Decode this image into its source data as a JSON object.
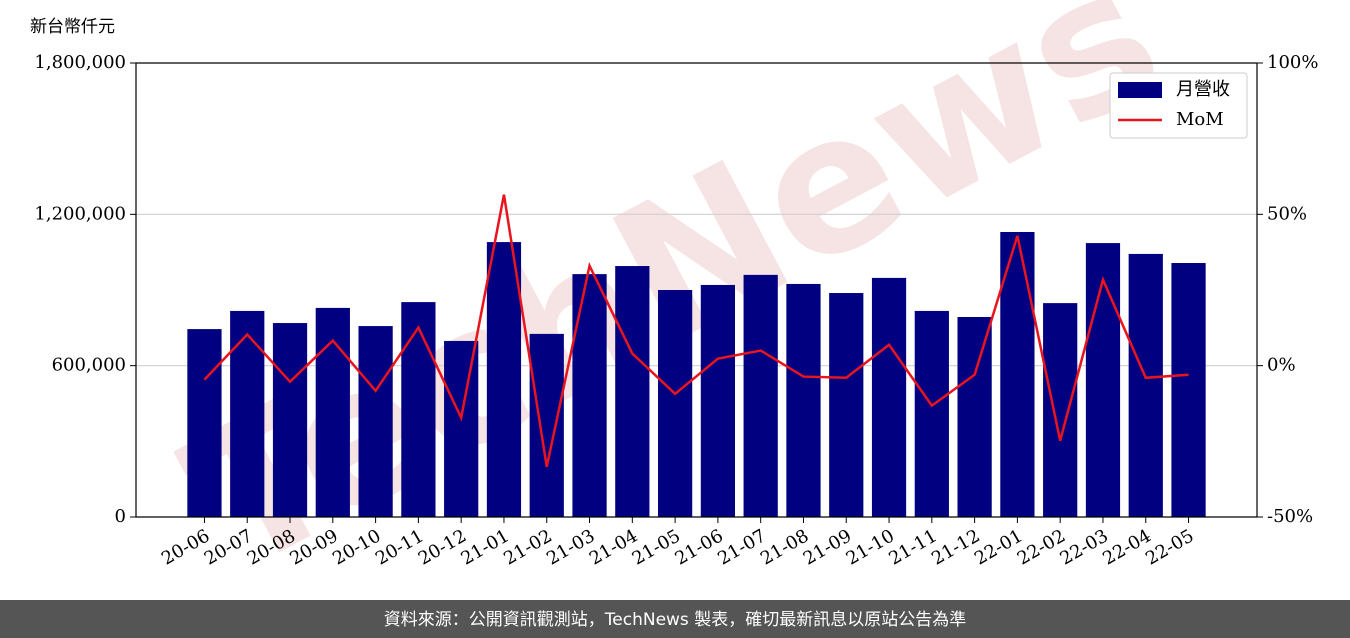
{
  "chart_data": {
    "type": "bar-line",
    "y_label": "新台幣仟元",
    "watermark": "TechNews",
    "footer": "資料來源：公開資訊觀測站，TechNews 製表，確切最新訊息以原站公告為準",
    "categories": [
      "20-06",
      "20-07",
      "20-08",
      "20-09",
      "20-10",
      "20-11",
      "20-12",
      "21-01",
      "21-02",
      "21-03",
      "21-04",
      "21-05",
      "21-06",
      "21-07",
      "21-08",
      "21-09",
      "21-10",
      "21-11",
      "21-12",
      "22-01",
      "22-02",
      "22-03",
      "22-04",
      "22-05"
    ],
    "series": [
      {
        "name": "月營收",
        "type": "bar",
        "color": "#000080",
        "values": [
          745000,
          817000,
          769000,
          829000,
          757000,
          852000,
          698000,
          1090000,
          726000,
          963000,
          995000,
          900000,
          920000,
          960000,
          924000,
          888000,
          948000,
          817000,
          793000,
          1130000,
          848000,
          1086000,
          1043000,
          1007000
        ]
      },
      {
        "name": "MoM",
        "type": "line",
        "axis": "y2",
        "color": "#e8141e",
        "values": [
          -4.6,
          10.3,
          -5.3,
          8.3,
          -8.3,
          12.6,
          -17.2,
          56.5,
          -33.4,
          33,
          4,
          -9.3,
          2.3,
          5,
          -3.6,
          -4,
          6.9,
          -13.2,
          -3,
          42.9,
          -24.8,
          28.4,
          -4,
          -3
        ]
      }
    ],
    "ylim": [
      0,
      1800000
    ],
    "yticks": [
      0,
      {
        "value": 600000,
        "label": "600,000"
      },
      {
        "value": 1200000,
        "label": "1,200,000"
      },
      {
        "value": 1800000,
        "label": "1,800,000"
      }
    ],
    "y2lim": [
      -50,
      100
    ],
    "y2ticks": [
      {
        "value": -50,
        "label": "-50%"
      },
      {
        "value": 0,
        "label": "0%"
      },
      {
        "value": 50,
        "label": "50%"
      },
      {
        "value": 100,
        "label": "100%"
      }
    ],
    "grid": true,
    "legend": "upper right"
  }
}
